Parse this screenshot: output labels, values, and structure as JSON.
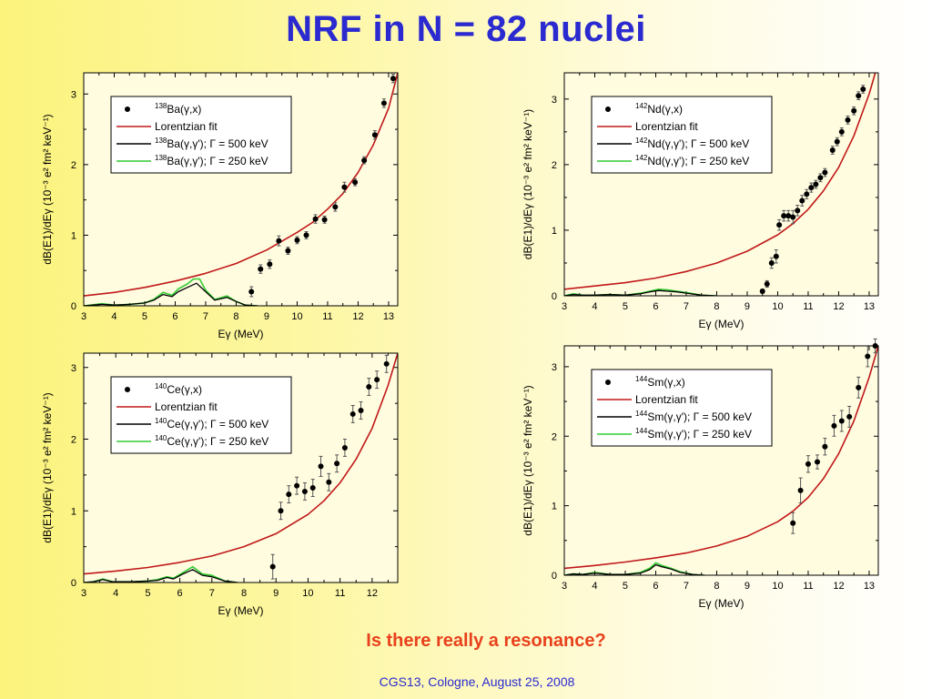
{
  "slide": {
    "title": "NRF in N = 82 nuclei",
    "question": "Is there really a resonance?",
    "footer": "CGS13, Cologne, August 25, 2008"
  },
  "colors": {
    "title": "#2a2ad0",
    "question": "#e8401c",
    "fit": "#c01818",
    "gamma500": "#000000",
    "gamma250": "#33cc33",
    "points": "#000000",
    "plot_bg": "#fffce0"
  },
  "chart_data": [
    {
      "type": "scatter",
      "nucleus": "138Ba",
      "xlabel": "Eγ (MeV)",
      "ylabel": "dB(E1)/dEγ (10⁻³ e² fm² keV⁻¹)",
      "xlim": [
        3,
        13.3
      ],
      "ylim": [
        0,
        3.3
      ],
      "xticks": [
        "3",
        "4",
        "5",
        "6",
        "7",
        "8",
        "9",
        "10",
        "11",
        "12",
        "13"
      ],
      "yticks": [
        "0",
        "1",
        "2",
        "3"
      ],
      "legend": [
        {
          "mass": "138",
          "label": "Ba(γ,x)",
          "kind": "marker"
        },
        {
          "mass": "",
          "label": "Lorentzian fit",
          "kind": "fit"
        },
        {
          "mass": "138",
          "label": "Ba(γ,γ'); Γ = 500 keV",
          "kind": "gamma500"
        },
        {
          "mass": "138",
          "label": "Ba(γ,γ'); Γ = 250 keV",
          "kind": "gamma250"
        }
      ],
      "points": [
        {
          "x": 8.5,
          "y": 0.2,
          "err": 0.07
        },
        {
          "x": 8.8,
          "y": 0.52,
          "err": 0.06
        },
        {
          "x": 9.1,
          "y": 0.59,
          "err": 0.06
        },
        {
          "x": 9.4,
          "y": 0.92,
          "err": 0.07
        },
        {
          "x": 9.7,
          "y": 0.78,
          "err": 0.05
        },
        {
          "x": 10.0,
          "y": 0.93,
          "err": 0.05
        },
        {
          "x": 10.3,
          "y": 1.0,
          "err": 0.05
        },
        {
          "x": 10.6,
          "y": 1.23,
          "err": 0.06
        },
        {
          "x": 10.9,
          "y": 1.22,
          "err": 0.05
        },
        {
          "x": 11.25,
          "y": 1.4,
          "err": 0.06
        },
        {
          "x": 11.55,
          "y": 1.68,
          "err": 0.07
        },
        {
          "x": 11.9,
          "y": 1.75,
          "err": 0.05
        },
        {
          "x": 12.2,
          "y": 2.06,
          "err": 0.05
        },
        {
          "x": 12.55,
          "y": 2.42,
          "err": 0.06
        },
        {
          "x": 12.85,
          "y": 2.87,
          "err": 0.06
        },
        {
          "x": 13.15,
          "y": 3.22,
          "err": 0.06
        }
      ],
      "fit": {
        "x": [
          3,
          4,
          5,
          6,
          7,
          8,
          9,
          10,
          10.5,
          11,
          11.5,
          12,
          12.5,
          13,
          13.3
        ],
        "y": [
          0.14,
          0.19,
          0.26,
          0.35,
          0.46,
          0.6,
          0.79,
          1.04,
          1.18,
          1.37,
          1.59,
          1.89,
          2.28,
          2.8,
          3.3
        ]
      },
      "gamma500": {
        "x": [
          3,
          3.6,
          4,
          4.5,
          5,
          5.3,
          5.6,
          5.9,
          6.1,
          6.4,
          6.7,
          7.0,
          7.3,
          7.7,
          8.0,
          8.3,
          8.7
        ],
        "y": [
          0,
          0.02,
          0.01,
          0.02,
          0.04,
          0.08,
          0.16,
          0.13,
          0.2,
          0.26,
          0.32,
          0.2,
          0.08,
          0.12,
          0.06,
          0.01,
          0
        ]
      },
      "gamma250": {
        "x": [
          3,
          3.6,
          4,
          4.5,
          5,
          5.3,
          5.6,
          5.9,
          6.1,
          6.4,
          6.6,
          6.8,
          7.0,
          7.3,
          7.7,
          8.0,
          8.3,
          8.7
        ],
        "y": [
          0,
          0.03,
          0.01,
          0.02,
          0.04,
          0.09,
          0.19,
          0.15,
          0.24,
          0.31,
          0.38,
          0.38,
          0.22,
          0.09,
          0.14,
          0.06,
          0.01,
          0
        ]
      }
    },
    {
      "type": "scatter",
      "nucleus": "142Nd",
      "xlabel": "Eγ (MeV)",
      "ylabel": "dB(E1)/dEγ (10⁻³ e² fm² keV⁻¹)",
      "xlim": [
        3,
        13.3
      ],
      "ylim": [
        0,
        3.4
      ],
      "xticks": [
        "3",
        "4",
        "5",
        "6",
        "7",
        "8",
        "9",
        "10",
        "11",
        "12",
        "13"
      ],
      "yticks": [
        "0",
        "1",
        "2",
        "3"
      ],
      "legend": [
        {
          "mass": "142",
          "label": "Nd(γ,x)",
          "kind": "marker"
        },
        {
          "mass": "",
          "label": "Lorentzian fit",
          "kind": "fit"
        },
        {
          "mass": "142",
          "label": "Nd(γ,γ'); Γ = 500 keV",
          "kind": "gamma500"
        },
        {
          "mass": "142",
          "label": "Nd(γ,γ'); Γ = 250 keV",
          "kind": "gamma250"
        }
      ],
      "points": [
        {
          "x": 9.5,
          "y": 0.07,
          "err": 0.03
        },
        {
          "x": 9.65,
          "y": 0.18,
          "err": 0.05
        },
        {
          "x": 9.8,
          "y": 0.5,
          "err": 0.08
        },
        {
          "x": 9.95,
          "y": 0.6,
          "err": 0.1
        },
        {
          "x": 10.05,
          "y": 1.08,
          "err": 0.08
        },
        {
          "x": 10.2,
          "y": 1.22,
          "err": 0.08
        },
        {
          "x": 10.35,
          "y": 1.22,
          "err": 0.08
        },
        {
          "x": 10.5,
          "y": 1.2,
          "err": 0.1
        },
        {
          "x": 10.65,
          "y": 1.3,
          "err": 0.08
        },
        {
          "x": 10.8,
          "y": 1.45,
          "err": 0.08
        },
        {
          "x": 10.95,
          "y": 1.55,
          "err": 0.07
        },
        {
          "x": 11.1,
          "y": 1.65,
          "err": 0.07
        },
        {
          "x": 11.25,
          "y": 1.7,
          "err": 0.06
        },
        {
          "x": 11.4,
          "y": 1.8,
          "err": 0.06
        },
        {
          "x": 11.55,
          "y": 1.88,
          "err": 0.06
        },
        {
          "x": 11.8,
          "y": 2.22,
          "err": 0.06
        },
        {
          "x": 11.95,
          "y": 2.35,
          "err": 0.06
        },
        {
          "x": 12.1,
          "y": 2.5,
          "err": 0.06
        },
        {
          "x": 12.3,
          "y": 2.68,
          "err": 0.06
        },
        {
          "x": 12.5,
          "y": 2.82,
          "err": 0.06
        },
        {
          "x": 12.65,
          "y": 3.05,
          "err": 0.06
        },
        {
          "x": 12.8,
          "y": 3.15,
          "err": 0.06
        }
      ],
      "fit": {
        "x": [
          3,
          4,
          5,
          6,
          7,
          8,
          9,
          10,
          10.5,
          11,
          11.5,
          12,
          12.5,
          13,
          13.2
        ],
        "y": [
          0.1,
          0.15,
          0.2,
          0.27,
          0.37,
          0.5,
          0.68,
          0.93,
          1.1,
          1.32,
          1.6,
          1.96,
          2.44,
          3.08,
          3.4
        ]
      },
      "gamma500": {
        "x": [
          3,
          3.3,
          3.6,
          4,
          4.5,
          5,
          5.5,
          5.8,
          6.1,
          6.4,
          6.7,
          7,
          7.5,
          8
        ],
        "y": [
          0,
          0.02,
          0.01,
          0.01,
          0.02,
          0.01,
          0.03,
          0.06,
          0.08,
          0.07,
          0.06,
          0.04,
          0.01,
          0
        ]
      },
      "gamma250": {
        "x": [
          3,
          3.3,
          3.6,
          4,
          4.5,
          5,
          5.5,
          5.8,
          6.1,
          6.4,
          6.7,
          7,
          7.5,
          8
        ],
        "y": [
          0,
          0.03,
          0.01,
          0.01,
          0.02,
          0.01,
          0.04,
          0.07,
          0.1,
          0.09,
          0.07,
          0.05,
          0.01,
          0
        ]
      }
    },
    {
      "type": "scatter",
      "nucleus": "140Ce",
      "xlabel": "Eγ (MeV)",
      "ylabel": "dB(E1)/dEγ (10⁻³ e² fm² keV⁻¹)",
      "xlim": [
        3,
        12.8
      ],
      "ylim": [
        0,
        3.2
      ],
      "xticks": [
        "3",
        "4",
        "5",
        "6",
        "7",
        "8",
        "9",
        "10",
        "11",
        "12"
      ],
      "yticks": [
        "0",
        "1",
        "2",
        "3"
      ],
      "legend": [
        {
          "mass": "140",
          "label": "Ce(γ,x)",
          "kind": "marker"
        },
        {
          "mass": "",
          "label": "Lorentzian fit",
          "kind": "fit"
        },
        {
          "mass": "140",
          "label": "Ce(γ,γ'); Γ = 500 keV",
          "kind": "gamma500"
        },
        {
          "mass": "140",
          "label": "Ce(γ,γ'); Γ = 250 keV",
          "kind": "gamma250"
        }
      ],
      "points": [
        {
          "x": 8.9,
          "y": 0.22,
          "err": 0.17
        },
        {
          "x": 9.15,
          "y": 1.0,
          "err": 0.12
        },
        {
          "x": 9.4,
          "y": 1.23,
          "err": 0.12
        },
        {
          "x": 9.65,
          "y": 1.35,
          "err": 0.12
        },
        {
          "x": 9.9,
          "y": 1.27,
          "err": 0.12
        },
        {
          "x": 10.15,
          "y": 1.32,
          "err": 0.12
        },
        {
          "x": 10.4,
          "y": 1.62,
          "err": 0.14
        },
        {
          "x": 10.65,
          "y": 1.4,
          "err": 0.12
        },
        {
          "x": 10.9,
          "y": 1.66,
          "err": 0.12
        },
        {
          "x": 11.15,
          "y": 1.88,
          "err": 0.12
        },
        {
          "x": 11.4,
          "y": 2.35,
          "err": 0.12
        },
        {
          "x": 11.65,
          "y": 2.4,
          "err": 0.12
        },
        {
          "x": 11.9,
          "y": 2.73,
          "err": 0.12
        },
        {
          "x": 12.15,
          "y": 2.83,
          "err": 0.12
        },
        {
          "x": 12.45,
          "y": 3.05,
          "err": 0.12
        }
      ],
      "fit": {
        "x": [
          3,
          4,
          5,
          6,
          7,
          8,
          9,
          10,
          10.5,
          11,
          11.5,
          12,
          12.5,
          12.8
        ],
        "y": [
          0.12,
          0.16,
          0.21,
          0.28,
          0.37,
          0.5,
          0.68,
          0.95,
          1.14,
          1.39,
          1.72,
          2.15,
          2.75,
          3.2
        ]
      },
      "gamma500": {
        "x": [
          3,
          3.3,
          3.6,
          3.9,
          4.5,
          5,
          5.3,
          5.6,
          5.8,
          6.1,
          6.4,
          6.7,
          7.0,
          7.4,
          7.8
        ],
        "y": [
          0,
          0.01,
          0.04,
          0.01,
          0.01,
          0.02,
          0.03,
          0.07,
          0.05,
          0.12,
          0.18,
          0.1,
          0.08,
          0.02,
          0
        ]
      },
      "gamma250": {
        "x": [
          3,
          3.3,
          3.6,
          3.9,
          4.5,
          5,
          5.3,
          5.6,
          5.8,
          6.1,
          6.4,
          6.7,
          7.0,
          7.4,
          7.8
        ],
        "y": [
          0,
          0.01,
          0.05,
          0.01,
          0.01,
          0.02,
          0.04,
          0.08,
          0.06,
          0.14,
          0.22,
          0.12,
          0.1,
          0.02,
          0
        ]
      }
    },
    {
      "type": "scatter",
      "nucleus": "144Sm",
      "xlabel": "Eγ (MeV)",
      "ylabel": "dB(E1)/dEγ (10⁻³ e² fm² keV⁻¹)",
      "xlim": [
        3,
        13.3
      ],
      "ylim": [
        0,
        3.3
      ],
      "xticks": [
        "3",
        "4",
        "5",
        "6",
        "7",
        "8",
        "9",
        "10",
        "11",
        "12",
        "13"
      ],
      "yticks": [
        "0",
        "1",
        "2",
        "3"
      ],
      "legend": [
        {
          "mass": "144",
          "label": "Sm(γ,x)",
          "kind": "marker"
        },
        {
          "mass": "",
          "label": "Lorentzian fit",
          "kind": "fit"
        },
        {
          "mass": "144",
          "label": "Sm(γ,γ'); Γ = 500 keV",
          "kind": "gamma500"
        },
        {
          "mass": "144",
          "label": "Sm(γ,γ'); Γ = 250 keV",
          "kind": "gamma250"
        }
      ],
      "points": [
        {
          "x": 10.5,
          "y": 0.75,
          "err": 0.15
        },
        {
          "x": 10.75,
          "y": 1.22,
          "err": 0.18
        },
        {
          "x": 11.0,
          "y": 1.6,
          "err": 0.12
        },
        {
          "x": 11.3,
          "y": 1.63,
          "err": 0.1
        },
        {
          "x": 11.55,
          "y": 1.85,
          "err": 0.12
        },
        {
          "x": 11.85,
          "y": 2.15,
          "err": 0.15
        },
        {
          "x": 12.1,
          "y": 2.22,
          "err": 0.15
        },
        {
          "x": 12.35,
          "y": 2.28,
          "err": 0.15
        },
        {
          "x": 12.65,
          "y": 2.7,
          "err": 0.15
        },
        {
          "x": 12.95,
          "y": 3.15,
          "err": 0.15
        },
        {
          "x": 13.2,
          "y": 3.3,
          "err": 0.1
        }
      ],
      "fit": {
        "x": [
          3,
          4,
          5,
          6,
          7,
          8,
          9,
          10,
          10.5,
          11,
          11.5,
          12,
          12.5,
          13,
          13.3
        ],
        "y": [
          0.1,
          0.14,
          0.19,
          0.25,
          0.32,
          0.42,
          0.56,
          0.77,
          0.92,
          1.12,
          1.39,
          1.75,
          2.22,
          2.85,
          3.3
        ]
      },
      "gamma500": {
        "x": [
          3,
          3.3,
          3.6,
          4,
          4.5,
          5,
          5.5,
          5.8,
          6.0,
          6.2,
          6.5,
          6.8,
          7.2,
          7.6
        ],
        "y": [
          0,
          0.02,
          0.01,
          0.03,
          0.01,
          0.01,
          0.03,
          0.08,
          0.15,
          0.12,
          0.09,
          0.04,
          0.01,
          0
        ]
      },
      "gamma250": {
        "x": [
          3,
          3.3,
          3.6,
          4,
          4.5,
          5,
          5.5,
          5.8,
          6.0,
          6.2,
          6.5,
          6.8,
          7.2,
          7.6
        ],
        "y": [
          0,
          0.02,
          0.01,
          0.04,
          0.01,
          0.01,
          0.04,
          0.1,
          0.18,
          0.14,
          0.1,
          0.05,
          0.01,
          0
        ]
      }
    }
  ]
}
